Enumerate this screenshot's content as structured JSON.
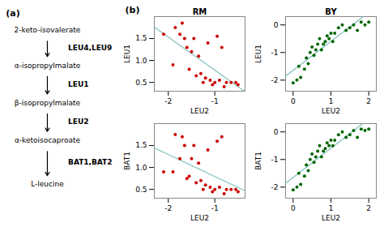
{
  "chart_data": [
    {
      "type": "pathway",
      "title": "(a)",
      "categories": [
        "2-keto-isovalerate",
        "α-isopropylmalate",
        "β-isopropylmalate",
        "α-ketoisocaproate",
        "L-leucine"
      ],
      "annotations": [
        "LEU4,LEU9",
        "LEU1",
        "LEU2",
        "BAT1,BAT2"
      ]
    },
    {
      "type": "scatter",
      "title": "RM",
      "annotations": [
        "(b)"
      ],
      "xlabel": "LEU2",
      "ylabel": "LEU1",
      "xlim": [
        -2.3,
        -0.35
      ],
      "ylim": [
        0.3,
        2.0
      ],
      "xticks": [
        -2,
        -1
      ],
      "yticks": [
        0.5,
        {
          "value": 1,
          "label": "1.0"
        },
        1.5
      ],
      "series": [
        {
          "type": "scatter",
          "color": "#cc0000",
          "x": [
            -2.1,
            -1.9,
            -1.85,
            -1.75,
            -1.7,
            -1.65,
            -1.6,
            -1.55,
            -1.5,
            -1.45,
            -1.4,
            -1.35,
            -1.3,
            -1.25,
            -1.2,
            -1.15,
            -1.1,
            -1.05,
            -1.0,
            -0.95,
            -0.9,
            -0.85,
            -0.8,
            -0.75,
            -0.65,
            -0.55,
            -0.5
          ],
          "values": [
            1.6,
            0.9,
            1.75,
            1.6,
            1.85,
            1.5,
            1.3,
            0.8,
            1.2,
            1.5,
            0.65,
            1.1,
            0.7,
            0.5,
            0.6,
            1.4,
            0.55,
            0.45,
            0.5,
            1.55,
            0.55,
            1.3,
            0.4,
            0.5,
            0.5,
            0.5,
            0.45
          ]
        },
        {
          "type": "line",
          "color": "#7fbfbf",
          "x": [
            -2.3,
            -0.3635
          ],
          "values": [
            1.7613,
            0.3
          ]
        }
      ]
    },
    {
      "type": "scatter",
      "title": "BY",
      "xlabel": "LEU2",
      "ylabel": "LEU1",
      "xlim": [
        -0.2,
        2.2
      ],
      "ylim": [
        -2.4,
        0.3
      ],
      "xticks": [
        0,
        1,
        2
      ],
      "yticks": [
        -2,
        -1,
        0
      ],
      "series": [
        {
          "type": "scatter",
          "color": "#006600",
          "x": [
            0.0,
            0.1,
            0.15,
            0.2,
            0.3,
            0.35,
            0.4,
            0.45,
            0.5,
            0.55,
            0.6,
            0.65,
            0.7,
            0.75,
            0.8,
            0.85,
            0.9,
            0.95,
            1.0,
            1.05,
            1.1,
            1.2,
            1.3,
            1.4,
            1.5,
            1.6,
            1.7,
            1.8,
            1.9,
            2.0
          ],
          "values": [
            -2.1,
            -2.0,
            -1.5,
            -1.9,
            -1.6,
            -1.2,
            -1.4,
            -1.0,
            -0.8,
            -1.1,
            -0.9,
            -0.7,
            -0.5,
            -0.9,
            -0.7,
            -0.6,
            -0.4,
            -0.5,
            -0.3,
            -0.6,
            -0.3,
            -0.1,
            0.0,
            -0.2,
            -0.1,
            0.0,
            -0.2,
            0.1,
            0.0,
            0.1
          ]
        },
        {
          "type": "line",
          "color": "#7fbfbf",
          "x": [
            -0.2,
            1.8572
          ],
          "values": [
            -1.8591,
            0.3
          ]
        }
      ]
    },
    {
      "type": "scatter",
      "xlabel": "LEU2",
      "ylabel": "BAT1",
      "xlim": [
        -2.3,
        -0.35
      ],
      "ylim": [
        0.3,
        2.0
      ],
      "xticks": [
        -2,
        -1
      ],
      "yticks": [
        0.5,
        {
          "value": 1,
          "label": "1.0"
        },
        1.5
      ],
      "series": [
        {
          "type": "scatter",
          "color": "#cc0000",
          "x": [
            -2.1,
            -1.9,
            -1.85,
            -1.75,
            -1.7,
            -1.65,
            -1.6,
            -1.55,
            -1.5,
            -1.45,
            -1.4,
            -1.35,
            -1.3,
            -1.25,
            -1.2,
            -1.15,
            -1.1,
            -1.05,
            -1.0,
            -0.95,
            -0.9,
            -0.85,
            -0.8,
            -0.75,
            -0.65,
            -0.55,
            -0.5
          ],
          "values": [
            0.9,
            0.9,
            1.75,
            1.2,
            1.7,
            1.5,
            0.75,
            0.8,
            1.2,
            1.5,
            0.65,
            1.1,
            0.7,
            0.5,
            0.6,
            1.4,
            0.55,
            0.45,
            0.5,
            1.6,
            0.55,
            1.7,
            0.4,
            0.5,
            0.5,
            0.5,
            0.45
          ]
        },
        {
          "type": "line",
          "color": "#7fbfbf",
          "x": [
            -2.3,
            -0.35
          ],
          "values": [
            1.4456,
            0.4685
          ]
        }
      ]
    },
    {
      "type": "scatter",
      "xlabel": "LEU2",
      "ylabel": "BAT1",
      "xlim": [
        -0.2,
        2.2
      ],
      "ylim": [
        -2.4,
        0.3
      ],
      "xticks": [
        0,
        1,
        2
      ],
      "yticks": [
        -2,
        -1,
        0
      ],
      "series": [
        {
          "type": "scatter",
          "color": "#006600",
          "x": [
            0.0,
            0.1,
            0.15,
            0.2,
            0.3,
            0.35,
            0.4,
            0.45,
            0.5,
            0.55,
            0.6,
            0.65,
            0.7,
            0.75,
            0.8,
            0.85,
            0.9,
            0.95,
            1.0,
            1.05,
            1.1,
            1.2,
            1.3,
            1.4,
            1.5,
            1.6,
            1.7,
            1.8,
            1.9,
            2.0
          ],
          "values": [
            -2.1,
            -2.0,
            -1.5,
            -1.9,
            -1.6,
            -1.2,
            -1.4,
            -1.0,
            -0.8,
            -1.1,
            -0.9,
            -0.7,
            -0.5,
            -0.9,
            -0.7,
            -0.6,
            -0.4,
            -0.5,
            -0.3,
            -0.5,
            -0.3,
            -0.1,
            0.0,
            -0.2,
            -0.1,
            0.05,
            -0.2,
            0.1,
            0.05,
            0.1
          ]
        },
        {
          "type": "line",
          "color": "#7fbfbf",
          "x": [
            -0.2,
            1.8408
          ],
          "values": [
            -1.8645,
            0.3
          ]
        }
      ]
    }
  ]
}
